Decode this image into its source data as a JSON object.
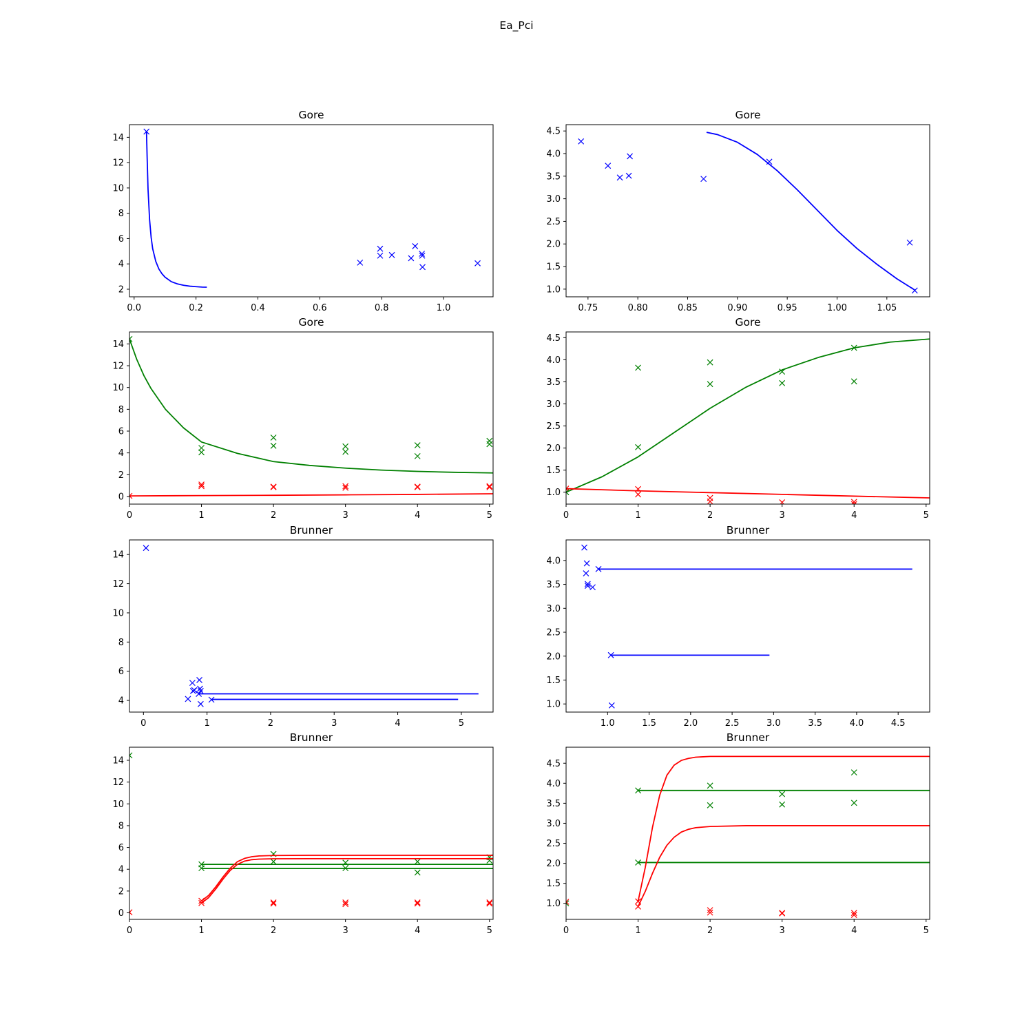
{
  "figure": {
    "suptitle": "Ea_Pci"
  },
  "colors": {
    "blue": "#0000ff",
    "green": "#008000",
    "red": "#ff0000"
  },
  "chart_data": [
    {
      "type": "scatter",
      "title": "Gore",
      "xlim": [
        -0.015,
        1.16
      ],
      "ylim": [
        1.4,
        15.0
      ],
      "xticks": [
        0.0,
        0.2,
        0.4,
        0.6,
        0.8,
        1.0
      ],
      "xtick_labels": [
        "0.0",
        "0.2",
        "0.4",
        "0.6",
        "0.8",
        "1.0"
      ],
      "yticks": [
        2,
        4,
        6,
        8,
        10,
        12,
        14
      ],
      "ytick_labels": [
        "2",
        "4",
        "6",
        "8",
        "10",
        "12",
        "14"
      ],
      "series": [
        {
          "color": "blue",
          "marker": "x",
          "x": [
            0.04,
            0.73,
            0.795,
            0.795,
            0.833,
            0.895,
            0.908,
            0.93,
            0.931,
            0.932,
            1.11
          ],
          "y": [
            14.45,
            4.1,
            5.2,
            4.65,
            4.7,
            4.45,
            5.4,
            4.8,
            4.65,
            3.75,
            4.05
          ]
        },
        {
          "color": "blue",
          "curve": "gore-hyperbola",
          "x": [
            0.04,
            0.042,
            0.045,
            0.05,
            0.055,
            0.06,
            0.07,
            0.08,
            0.09,
            0.1,
            0.12,
            0.14,
            0.16,
            0.18,
            0.2,
            0.22,
            0.235
          ],
          "y": [
            14.45,
            12.5,
            9.9,
            7.5,
            6.1,
            5.2,
            4.2,
            3.6,
            3.22,
            2.95,
            2.6,
            2.42,
            2.31,
            2.24,
            2.2,
            2.17,
            2.16
          ]
        }
      ]
    },
    {
      "type": "scatter",
      "title": "Gore",
      "xlim": [
        0.728,
        1.093
      ],
      "ylim": [
        0.83,
        4.64
      ],
      "xticks": [
        0.75,
        0.8,
        0.85,
        0.9,
        0.95,
        1.0,
        1.05
      ],
      "xtick_labels": [
        "0.75",
        "0.80",
        "0.85",
        "0.90",
        "0.95",
        "1.00",
        "1.05"
      ],
      "yticks": [
        1.0,
        1.5,
        2.0,
        2.5,
        3.0,
        3.5,
        4.0,
        4.5
      ],
      "ytick_labels": [
        "1.0",
        "1.5",
        "2.0",
        "2.5",
        "3.0",
        "3.5",
        "4.0",
        "4.5"
      ],
      "series": [
        {
          "color": "blue",
          "marker": "x",
          "x": [
            0.743,
            0.77,
            0.782,
            0.791,
            0.792,
            0.866,
            0.932,
            1.073,
            1.078
          ],
          "y": [
            4.27,
            3.73,
            3.47,
            3.51,
            3.94,
            3.44,
            3.82,
            2.03,
            0.97
          ]
        },
        {
          "color": "blue",
          "curve": "gore-sigmoid",
          "x": [
            0.869,
            0.88,
            0.9,
            0.92,
            0.94,
            0.96,
            0.98,
            1.0,
            1.02,
            1.04,
            1.06,
            1.078
          ],
          "y": [
            4.47,
            4.42,
            4.25,
            3.98,
            3.62,
            3.2,
            2.75,
            2.3,
            1.9,
            1.55,
            1.23,
            0.98
          ]
        }
      ]
    },
    {
      "type": "scatter",
      "title": "Gore",
      "xlim": [
        0,
        5.05
      ],
      "ylim": [
        -0.7,
        15.1
      ],
      "xticks": [
        0,
        1,
        2,
        3,
        4,
        5
      ],
      "xtick_labels": [
        "0",
        "1",
        "2",
        "3",
        "4",
        "5"
      ],
      "yticks": [
        0,
        2,
        4,
        6,
        8,
        10,
        12,
        14
      ],
      "ytick_labels": [
        "0",
        "2",
        "4",
        "6",
        "8",
        "10",
        "12",
        "14"
      ],
      "series": [
        {
          "color": "green",
          "marker": "x",
          "x": [
            0,
            1,
            1,
            2,
            2,
            3,
            3,
            4,
            4,
            5,
            5
          ],
          "y": [
            14.45,
            4.45,
            4.05,
            5.4,
            4.65,
            4.6,
            4.1,
            4.7,
            3.7,
            5.1,
            4.8
          ]
        },
        {
          "color": "red",
          "marker": "x",
          "x": [
            0,
            1,
            1,
            2,
            2,
            3,
            3,
            4,
            4,
            5,
            5
          ],
          "y": [
            0.05,
            1.1,
            0.95,
            0.9,
            0.85,
            0.95,
            0.8,
            0.9,
            0.85,
            0.95,
            0.85
          ]
        },
        {
          "color": "green",
          "curve": "fit",
          "x": [
            0,
            0.1,
            0.2,
            0.3,
            0.5,
            0.75,
            1.0,
            1.5,
            2.0,
            2.5,
            3.0,
            3.5,
            4.0,
            4.5,
            5.05
          ],
          "y": [
            14.45,
            12.6,
            11.1,
            9.9,
            8.0,
            6.3,
            5.0,
            3.95,
            3.2,
            2.85,
            2.6,
            2.42,
            2.3,
            2.22,
            2.16
          ]
        },
        {
          "color": "red",
          "curve": "fit",
          "x": [
            0,
            1,
            2,
            3,
            4,
            5.05
          ],
          "y": [
            0.05,
            0.08,
            0.11,
            0.15,
            0.19,
            0.25
          ]
        }
      ]
    },
    {
      "type": "scatter",
      "title": "Gore",
      "xlim": [
        0,
        5.05
      ],
      "ylim": [
        0.73,
        4.63
      ],
      "xticks": [
        0,
        1,
        2,
        3,
        4,
        5
      ],
      "xtick_labels": [
        "0",
        "1",
        "2",
        "3",
        "4",
        "5"
      ],
      "yticks": [
        1.0,
        1.5,
        2.0,
        2.5,
        3.0,
        3.5,
        4.0,
        4.5
      ],
      "ytick_labels": [
        "1.0",
        "1.5",
        "2.0",
        "2.5",
        "3.0",
        "3.5",
        "4.0",
        "4.5"
      ],
      "series": [
        {
          "color": "green",
          "marker": "x",
          "x": [
            0,
            1,
            1,
            2,
            2,
            3,
            3,
            4,
            4
          ],
          "y": [
            1.0,
            3.82,
            2.02,
            3.94,
            3.45,
            3.73,
            3.47,
            4.27,
            3.51
          ]
        },
        {
          "color": "red",
          "marker": "x",
          "x": [
            0,
            1,
            1,
            2,
            2,
            3,
            4,
            4
          ],
          "y": [
            1.08,
            1.07,
            0.95,
            0.87,
            0.79,
            0.77,
            0.78,
            0.73
          ]
        },
        {
          "color": "green",
          "curve": "fit",
          "x": [
            0,
            0.5,
            1.0,
            1.5,
            2.0,
            2.5,
            3.0,
            3.5,
            4.0,
            4.5,
            5.05
          ],
          "y": [
            1.0,
            1.35,
            1.8,
            2.35,
            2.9,
            3.38,
            3.77,
            4.05,
            4.27,
            4.4,
            4.47
          ]
        },
        {
          "color": "red",
          "curve": "fit",
          "x": [
            0,
            1,
            2,
            3,
            4,
            5.05
          ],
          "y": [
            1.08,
            1.03,
            0.99,
            0.95,
            0.91,
            0.87
          ]
        }
      ]
    },
    {
      "type": "scatter",
      "title": "Brunner",
      "xlim": [
        -0.22,
        5.5
      ],
      "ylim": [
        3.2,
        15.0
      ],
      "xticks": [
        0,
        1,
        2,
        3,
        4,
        5
      ],
      "xtick_labels": [
        "0",
        "1",
        "2",
        "3",
        "4",
        "5"
      ],
      "yticks": [
        4,
        6,
        8,
        10,
        12,
        14
      ],
      "ytick_labels": [
        "4",
        "6",
        "8",
        "10",
        "12",
        "14"
      ],
      "series": [
        {
          "color": "blue",
          "marker": "x",
          "x": [
            0.04,
            0.7,
            0.77,
            0.78,
            0.8,
            0.87,
            0.88,
            0.89,
            0.9,
            0.9,
            1.07
          ],
          "y": [
            14.45,
            4.1,
            5.2,
            4.65,
            4.7,
            4.45,
            5.4,
            4.8,
            4.65,
            3.75,
            4.05
          ]
        },
        {
          "color": "blue",
          "curve": "hline",
          "x": [
            0.87,
            5.27
          ],
          "y": [
            4.45,
            4.45
          ]
        },
        {
          "color": "blue",
          "curve": "hline",
          "x": [
            1.07,
            4.95
          ],
          "y": [
            4.07,
            4.07
          ]
        }
      ]
    },
    {
      "type": "scatter",
      "title": "Brunner",
      "xlim": [
        0.5,
        4.88
      ],
      "ylim": [
        0.83,
        4.43
      ],
      "xticks": [
        1.0,
        1.5,
        2.0,
        2.5,
        3.0,
        3.5,
        4.0,
        4.5
      ],
      "xtick_labels": [
        "1.0",
        "1.5",
        "2.0",
        "2.5",
        "3.0",
        "3.5",
        "4.0",
        "4.5"
      ],
      "yticks": [
        1.0,
        1.5,
        2.0,
        2.5,
        3.0,
        3.5,
        4.0
      ],
      "ytick_labels": [
        "1.0",
        "1.5",
        "2.0",
        "2.5",
        "3.0",
        "3.5",
        "4.0"
      ],
      "series": [
        {
          "color": "blue",
          "marker": "x",
          "x": [
            0.72,
            0.74,
            0.75,
            0.76,
            0.76,
            0.82,
            0.89,
            1.04,
            1.05
          ],
          "y": [
            4.27,
            3.73,
            3.94,
            3.47,
            3.51,
            3.44,
            3.82,
            2.02,
            0.97
          ]
        },
        {
          "color": "blue",
          "curve": "hline",
          "x": [
            0.89,
            4.67
          ],
          "y": [
            3.82,
            3.82
          ]
        },
        {
          "color": "blue",
          "curve": "hline",
          "x": [
            1.04,
            2.95
          ],
          "y": [
            2.02,
            2.02
          ]
        }
      ]
    },
    {
      "type": "scatter",
      "title": "Brunner",
      "xlim": [
        0,
        5.05
      ],
      "ylim": [
        -0.6,
        15.2
      ],
      "xticks": [
        0,
        1,
        2,
        3,
        4,
        5
      ],
      "xtick_labels": [
        "0",
        "1",
        "2",
        "3",
        "4",
        "5"
      ],
      "yticks": [
        0,
        2,
        4,
        6,
        8,
        10,
        12,
        14
      ],
      "ytick_labels": [
        "0",
        "2",
        "4",
        "6",
        "8",
        "10",
        "12",
        "14"
      ],
      "series": [
        {
          "color": "green",
          "marker": "x",
          "x": [
            0,
            1,
            1,
            2,
            2,
            3,
            3,
            4,
            4,
            5,
            5
          ],
          "y": [
            14.45,
            4.45,
            4.1,
            5.4,
            4.7,
            4.6,
            4.1,
            4.7,
            3.7,
            5.1,
            4.8
          ]
        },
        {
          "color": "red",
          "marker": "x",
          "x": [
            0,
            1,
            1,
            2,
            2,
            3,
            3,
            4,
            4,
            5,
            5
          ],
          "y": [
            0.05,
            1.1,
            0.9,
            0.95,
            0.85,
            0.95,
            0.8,
            0.95,
            0.85,
            0.95,
            0.85
          ]
        },
        {
          "color": "green",
          "curve": "hline",
          "x": [
            1,
            5.05
          ],
          "y": [
            4.45,
            4.45
          ]
        },
        {
          "color": "green",
          "curve": "hline",
          "x": [
            1,
            5.05
          ],
          "y": [
            4.07,
            4.07
          ]
        },
        {
          "color": "red",
          "curve": "fit",
          "x": [
            1.0,
            1.1,
            1.2,
            1.3,
            1.4,
            1.5,
            1.6,
            1.7,
            1.8,
            2.0,
            2.5,
            3.0,
            5.05
          ],
          "y": [
            1.1,
            1.6,
            2.4,
            3.3,
            4.1,
            4.7,
            5.0,
            5.15,
            5.22,
            5.26,
            5.28,
            5.28,
            5.28
          ]
        },
        {
          "color": "red",
          "curve": "fit",
          "x": [
            1.0,
            1.1,
            1.2,
            1.3,
            1.4,
            1.5,
            1.6,
            1.7,
            1.8,
            2.0,
            2.5,
            3.0,
            5.05
          ],
          "y": [
            0.9,
            1.4,
            2.2,
            3.1,
            3.9,
            4.45,
            4.75,
            4.88,
            4.93,
            4.96,
            4.97,
            4.97,
            4.97
          ]
        }
      ]
    },
    {
      "type": "scatter",
      "title": "Brunner",
      "xlim": [
        0,
        5.05
      ],
      "ylim": [
        0.6,
        4.9
      ],
      "xticks": [
        0,
        1,
        2,
        3,
        4,
        5
      ],
      "xtick_labels": [
        "0",
        "1",
        "2",
        "3",
        "4",
        "5"
      ],
      "yticks": [
        1.0,
        1.5,
        2.0,
        2.5,
        3.0,
        3.5,
        4.0,
        4.5
      ],
      "ytick_labels": [
        "1.0",
        "1.5",
        "2.0",
        "2.5",
        "3.0",
        "3.5",
        "4.0",
        "4.5"
      ],
      "series": [
        {
          "color": "green",
          "marker": "x",
          "x": [
            0,
            1,
            1,
            2,
            2,
            3,
            3,
            4,
            4
          ],
          "y": [
            1.0,
            3.82,
            2.02,
            3.94,
            3.45,
            3.73,
            3.47,
            4.27,
            3.51
          ]
        },
        {
          "color": "red",
          "marker": "x",
          "x": [
            0,
            1,
            1,
            2,
            2,
            3,
            3,
            4,
            4
          ],
          "y": [
            1.04,
            1.05,
            0.92,
            0.83,
            0.77,
            0.76,
            0.75,
            0.76,
            0.71
          ]
        },
        {
          "color": "green",
          "curve": "hline",
          "x": [
            1,
            5.05
          ],
          "y": [
            3.82,
            3.82
          ]
        },
        {
          "color": "green",
          "curve": "hline",
          "x": [
            1,
            5.05
          ],
          "y": [
            2.02,
            2.02
          ]
        },
        {
          "color": "red",
          "curve": "fit",
          "x": [
            1.0,
            1.1,
            1.2,
            1.3,
            1.4,
            1.5,
            1.6,
            1.7,
            1.8,
            2.0,
            2.5,
            3.0,
            5.05
          ],
          "y": [
            1.05,
            1.9,
            2.9,
            3.7,
            4.2,
            4.45,
            4.57,
            4.62,
            4.65,
            4.67,
            4.67,
            4.67,
            4.67
          ]
        },
        {
          "color": "red",
          "curve": "fit",
          "x": [
            1.0,
            1.1,
            1.2,
            1.3,
            1.4,
            1.5,
            1.6,
            1.7,
            1.8,
            2.0,
            2.5,
            3.0,
            5.05
          ],
          "y": [
            0.92,
            1.3,
            1.75,
            2.15,
            2.45,
            2.65,
            2.78,
            2.85,
            2.89,
            2.92,
            2.94,
            2.94,
            2.94
          ]
        }
      ]
    }
  ]
}
